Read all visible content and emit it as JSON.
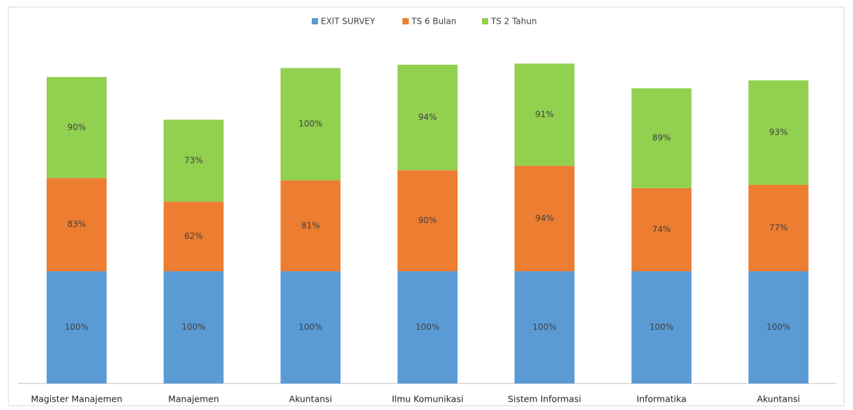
{
  "chart_data": {
    "type": "stacked_bar",
    "categories": [
      "Magister Manajemen",
      "Manajemen",
      "Akuntansi",
      "Ilmu Komunikasi",
      "Sistem Informasi",
      "Informatika",
      "Akuntansi"
    ],
    "legend": "top",
    "series": [
      {
        "name": "EXIT SURVEY",
        "color": "#5b9bd5",
        "values": [
          100,
          100,
          100,
          100,
          100,
          100,
          100
        ],
        "value_labels": [
          "100%",
          "100%",
          "100%",
          "100%",
          "100%",
          "100%",
          "100%"
        ]
      },
      {
        "name": "TS 6 Bulan",
        "color": "#ed7d31",
        "values": [
          83,
          62,
          81,
          90,
          94,
          74,
          77
        ],
        "value_labels": [
          "83%",
          "62%",
          "81%",
          "90%",
          "94%",
          "74%",
          "77%"
        ]
      },
      {
        "name": "TS 2 Tahun",
        "color": "#92d050",
        "values": [
          90,
          73,
          100,
          94,
          91,
          89,
          93
        ],
        "value_labels": [
          "90%",
          "73%",
          "100%",
          "94%",
          "91%",
          "89%",
          "93%"
        ]
      }
    ]
  }
}
